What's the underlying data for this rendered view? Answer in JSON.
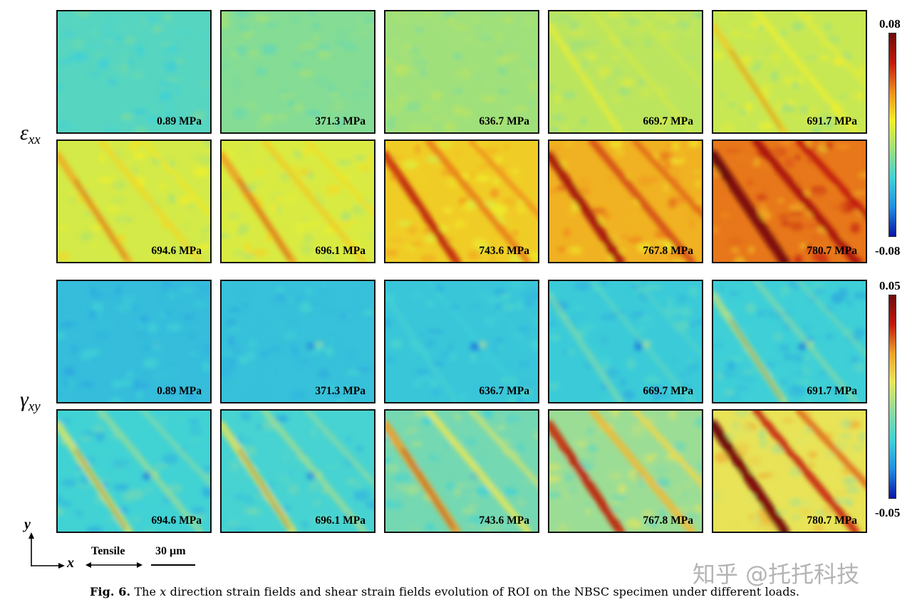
{
  "colors": {
    "exx_colormap": [
      "#0a13a5",
      "#1f8fe6",
      "#3fd2d6",
      "#9fe07c",
      "#f0ef2a",
      "#f08c1d",
      "#c0180e",
      "#6e0b0b"
    ],
    "gxy_colormap": [
      "#0a13a5",
      "#1f8fe6",
      "#3fd2d6",
      "#8fdb9f",
      "#e8e75a",
      "#f0a22a",
      "#c0180e",
      "#6e0b0b"
    ],
    "band_dark": "#a0120c"
  },
  "rows": {
    "exx_label": "ε",
    "exx_sub": "xx",
    "gxy_label": "γ",
    "gxy_sub": "xy"
  },
  "colorbar_exx": {
    "max": "0.08",
    "min": "-0.08"
  },
  "colorbar_gxy": {
    "max": "0.05",
    "min": "-0.05"
  },
  "exx_panels": [
    {
      "label": "0.89 MPa",
      "mean": 0.32,
      "band": 0.0
    },
    {
      "label": "371.3 MPa",
      "mean": 0.39,
      "band": 0.0
    },
    {
      "label": "636.7 MPa",
      "mean": 0.43,
      "band": 0.05
    },
    {
      "label": "669.7 MPa",
      "mean": 0.48,
      "band": 0.3
    },
    {
      "label": "691.7 MPa",
      "mean": 0.5,
      "band": 0.45
    },
    {
      "label": "694.6 MPa",
      "mean": 0.52,
      "band": 0.55
    },
    {
      "label": "696.1 MPa",
      "mean": 0.53,
      "band": 0.6
    },
    {
      "label": "743.6 MPa",
      "mean": 0.62,
      "band": 0.75
    },
    {
      "label": "767.8 MPa",
      "mean": 0.66,
      "band": 0.85
    },
    {
      "label": "780.7 MPa",
      "mean": 0.74,
      "band": 1.0
    }
  ],
  "gxy_panels": [
    {
      "label": "0.89 MPa",
      "mean": 0.24,
      "band": 0.0,
      "spot": 0.1
    },
    {
      "label": "371.3 MPa",
      "mean": 0.25,
      "band": 0.0,
      "spot": 0.6
    },
    {
      "label": "636.7 MPa",
      "mean": 0.26,
      "band": 0.1,
      "spot": 0.8
    },
    {
      "label": "669.7 MPa",
      "mean": 0.27,
      "band": 0.3,
      "spot": 0.8
    },
    {
      "label": "691.7 MPa",
      "mean": 0.28,
      "band": 0.5,
      "spot": 0.7
    },
    {
      "label": "694.6 MPa",
      "mean": 0.29,
      "band": 0.6,
      "spot": 0.7
    },
    {
      "label": "696.1 MPa",
      "mean": 0.3,
      "band": 0.62,
      "spot": 0.6
    },
    {
      "label": "743.6 MPa",
      "mean": 0.38,
      "band": 0.75,
      "spot": 0.2
    },
    {
      "label": "767.8 MPa",
      "mean": 0.45,
      "band": 0.85,
      "spot": 0.1
    },
    {
      "label": "780.7 MPa",
      "mean": 0.58,
      "band": 1.0,
      "spot": 0.0
    }
  ],
  "axes": {
    "y": "y",
    "x": "x",
    "tensile": "Tensile",
    "scale": "30 µm"
  },
  "caption": {
    "fig": "Fig. 6.",
    "text_a": "The ",
    "italic_x": "x",
    "text_b": " direction strain fields and shear strain fields evolution of ROI on the NBSC specimen under different loads."
  },
  "watermark": "知乎 @托托科技"
}
